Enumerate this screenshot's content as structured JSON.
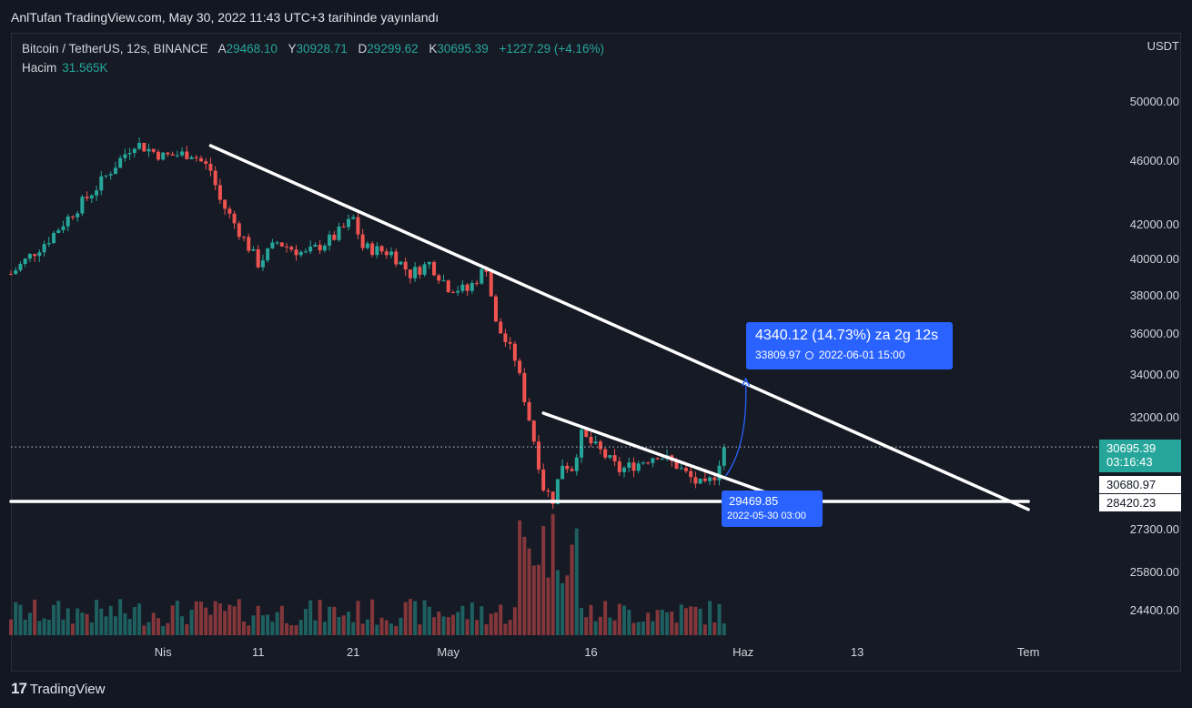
{
  "header": {
    "publish_text": "AnlTufan TradingView.com, May 30, 2022 11:43 UTC+3 tarihinde yayınlandı"
  },
  "legend": {
    "symbol": "Bitcoin / TetherUS, 12s, BINANCE",
    "open_label": "A",
    "open": "29468.10",
    "high_label": "Y",
    "high": "30928.71",
    "low_label": "D",
    "low": "29299.62",
    "close_label": "K",
    "close": "30695.39",
    "change": "+1227.29 (+4.16%)",
    "volume_label": "Hacim",
    "volume": "31.565K"
  },
  "currency": "USDT",
  "price_tag": {
    "price": "30695.39",
    "countdown": "03:16:43"
  },
  "level_tags": [
    "30680.97",
    "28420.23"
  ],
  "measure_box": {
    "line1": "4340.12 (14.73%) za 2g 12s",
    "price": "33809.97",
    "datetime": "2022-06-01  15:00"
  },
  "low_box": {
    "price": "29469.85",
    "datetime": "2022-05-30 03:00"
  },
  "footer": {
    "brand": "TradingView"
  },
  "colors": {
    "up": "#26a69a",
    "down": "#ef5350",
    "accent": "#2962ff",
    "background": "#131722"
  },
  "chart_data": {
    "type": "candlestick",
    "symbol": "BTC/USDT",
    "timeframe": "12h",
    "scale": "log",
    "y_ticks": [
      50000,
      46000,
      42000,
      40000,
      38000,
      36000,
      34000,
      32000,
      27300
    ],
    "y_tick_labels": [
      "50000.00",
      "46000.00",
      "42000.00",
      "40000.00",
      "38000.00",
      "36000.00",
      "34000.00",
      "32000.00",
      "27300.00"
    ],
    "volume_ticks": [
      "25800.00",
      "24400.00"
    ],
    "x_ticks": [
      "Nis",
      "11",
      "21",
      "May",
      "16",
      "Haz",
      "13",
      "Tem"
    ],
    "x_tick_dates": [
      "2022-04-01",
      "2022-04-11",
      "2022-04-21",
      "2022-05-01",
      "2022-05-16",
      "2022-06-01",
      "2022-06-13",
      "2022-07-01"
    ],
    "range_start": "2022-03-16",
    "range_end": "2022-07-07",
    "price_anchors": [
      {
        "date": "2022-03-16",
        "close": 39200
      },
      {
        "date": "2022-03-20",
        "close": 41200
      },
      {
        "date": "2022-03-25",
        "close": 44300
      },
      {
        "date": "2022-03-29",
        "close": 47200
      },
      {
        "date": "2022-04-01",
        "close": 46300
      },
      {
        "date": "2022-04-04",
        "close": 46500
      },
      {
        "date": "2022-04-06",
        "close": 45400
      },
      {
        "date": "2022-04-07",
        "close": 43500
      },
      {
        "date": "2022-04-11",
        "close": 39800
      },
      {
        "date": "2022-04-13",
        "close": 41000
      },
      {
        "date": "2022-04-16",
        "close": 40300
      },
      {
        "date": "2022-04-19",
        "close": 41300
      },
      {
        "date": "2022-04-21",
        "close": 42400
      },
      {
        "date": "2022-04-22",
        "close": 40700
      },
      {
        "date": "2022-04-25",
        "close": 40400
      },
      {
        "date": "2022-04-27",
        "close": 39200
      },
      {
        "date": "2022-04-29",
        "close": 39800
      },
      {
        "date": "2022-05-01",
        "close": 38500
      },
      {
        "date": "2022-05-03",
        "close": 38300
      },
      {
        "date": "2022-05-05",
        "close": 39600
      },
      {
        "date": "2022-05-06",
        "close": 36500
      },
      {
        "date": "2022-05-08",
        "close": 34800
      },
      {
        "date": "2022-05-10",
        "close": 31000
      },
      {
        "date": "2022-05-11",
        "close": 29000
      },
      {
        "date": "2022-05-12",
        "close": 28500
      },
      {
        "date": "2022-05-13",
        "close": 30000
      },
      {
        "date": "2022-05-14",
        "close": 29800
      },
      {
        "date": "2022-05-15",
        "close": 31200
      },
      {
        "date": "2022-05-17",
        "close": 30500
      },
      {
        "date": "2022-05-19",
        "close": 29700
      },
      {
        "date": "2022-05-21",
        "close": 30000
      },
      {
        "date": "2022-05-23",
        "close": 30400
      },
      {
        "date": "2022-05-25",
        "close": 29900
      },
      {
        "date": "2022-05-27",
        "close": 29200
      },
      {
        "date": "2022-05-28",
        "close": 29000
      },
      {
        "date": "2022-05-29",
        "close": 29500
      },
      {
        "date": "2022-05-30",
        "close": 30695
      }
    ],
    "trendlines": [
      {
        "from": {
          "date": "2022-04-06",
          "price": 47000
        },
        "to": {
          "date": "2022-07-01",
          "price": 28100
        }
      },
      {
        "from": {
          "date": "2022-05-11",
          "price": 32200
        },
        "to": {
          "date": "2022-06-04",
          "price": 28700
        }
      },
      {
        "from": {
          "date": "2022-03-16",
          "price": 28420
        },
        "to": {
          "date": "2022-07-01",
          "price": 28420
        }
      }
    ],
    "current_price": 30695.39,
    "projection": {
      "from_price": 29469.85,
      "to_price": 33809.97,
      "change": 4340.12,
      "percent": 14.73
    }
  }
}
